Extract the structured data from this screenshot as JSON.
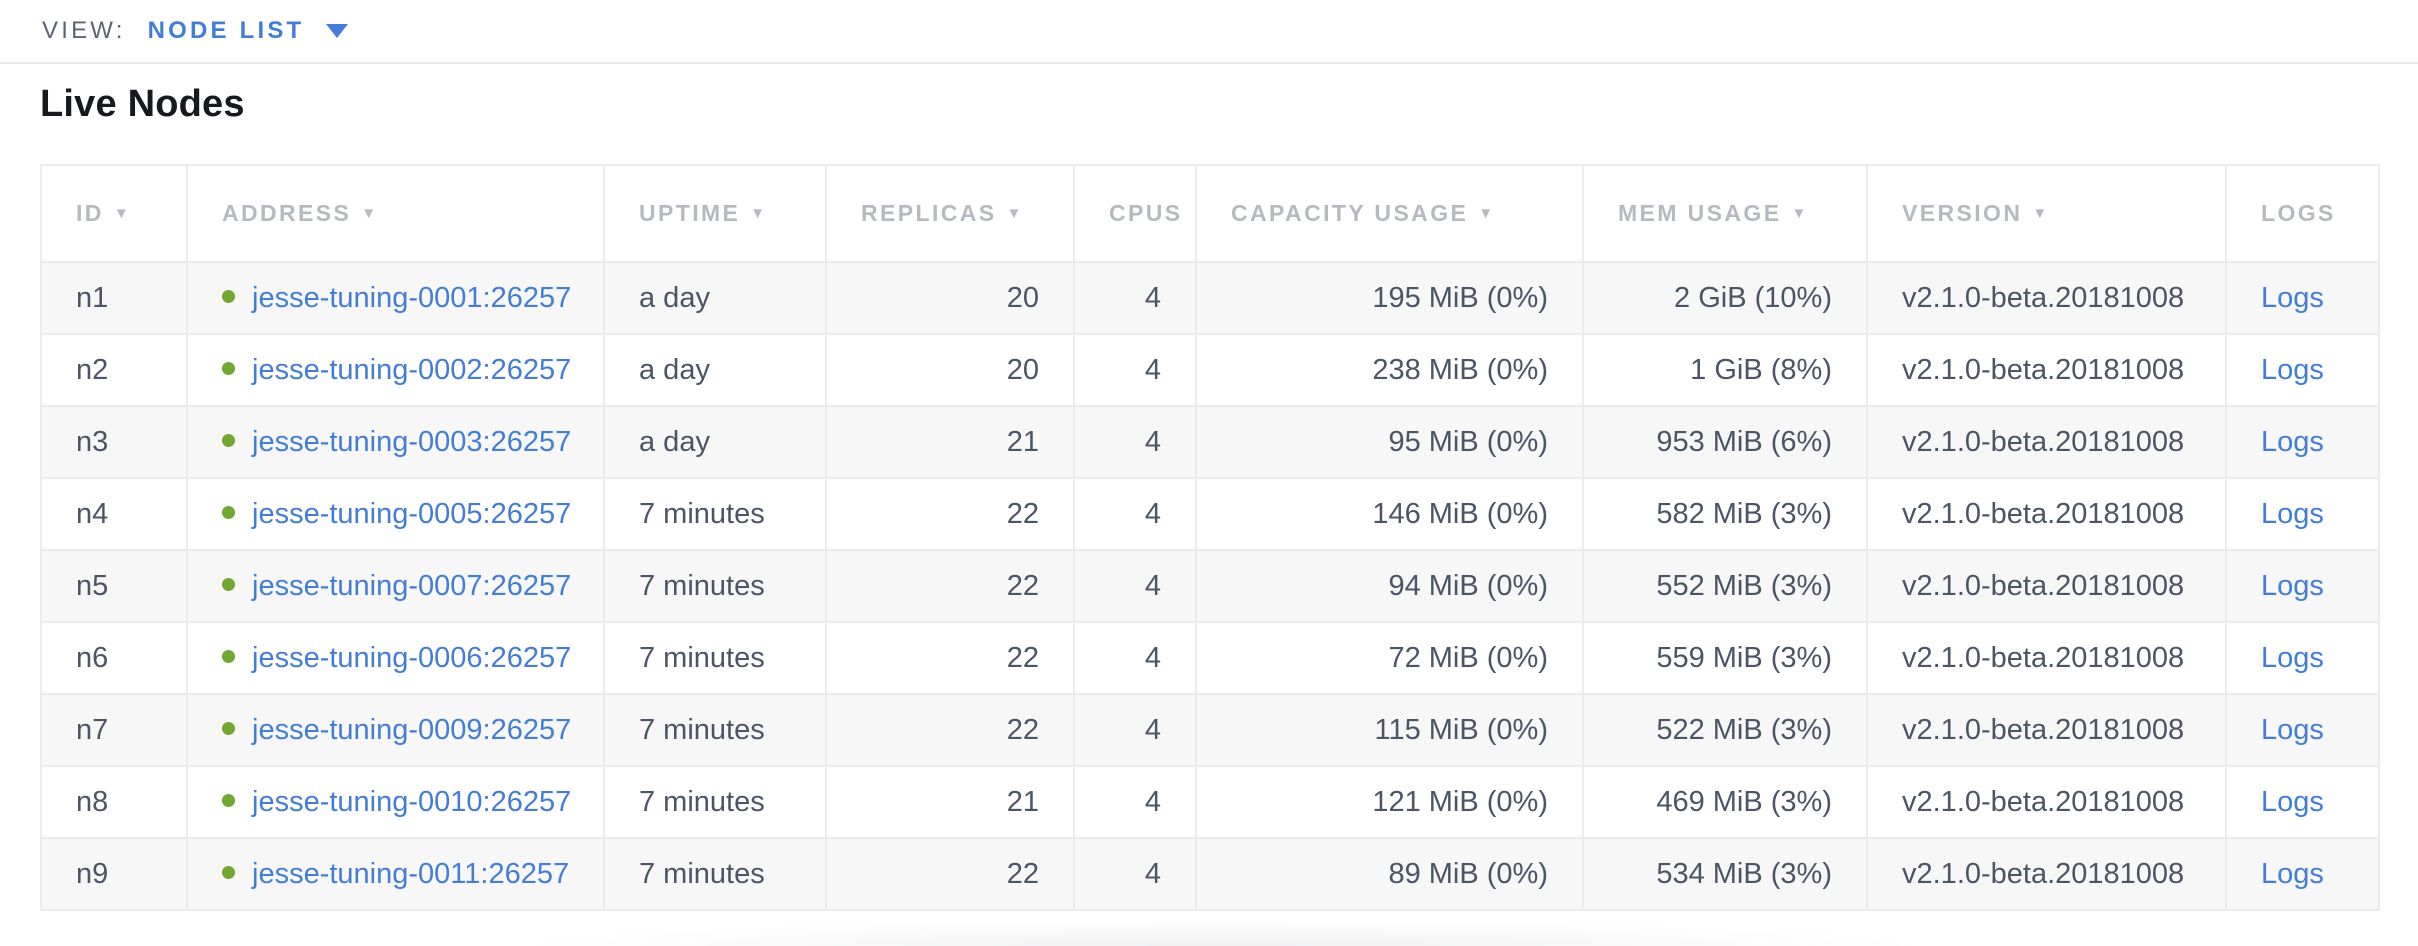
{
  "view_bar": {
    "label": "VIEW:",
    "selected": "NODE LIST",
    "caret_icon": "caret-down-icon"
  },
  "page": {
    "title": "Live Nodes"
  },
  "colors": {
    "link_blue": "#437dd6",
    "status_green": "#71a634",
    "header_gray": "#b6b9bf",
    "text_dark": "#4c5566",
    "row_alt": "#f7f7f8"
  },
  "table": {
    "columns": [
      {
        "key": "id",
        "label": "ID",
        "sortable": true,
        "align": "left"
      },
      {
        "key": "address",
        "label": "ADDRESS",
        "sortable": true,
        "align": "left",
        "type": "address"
      },
      {
        "key": "uptime",
        "label": "UPTIME",
        "sortable": true,
        "align": "left"
      },
      {
        "key": "replicas",
        "label": "REPLICAS",
        "sortable": true,
        "align": "right"
      },
      {
        "key": "cpus",
        "label": "CPUS",
        "sortable": false,
        "align": "right"
      },
      {
        "key": "capacity",
        "label": "CAPACITY USAGE",
        "sortable": true,
        "align": "right"
      },
      {
        "key": "mem",
        "label": "MEM USAGE",
        "sortable": true,
        "align": "right"
      },
      {
        "key": "version",
        "label": "VERSION",
        "sortable": true,
        "align": "left"
      },
      {
        "key": "logs",
        "label": "LOGS",
        "sortable": false,
        "align": "left",
        "type": "link"
      }
    ],
    "sort_arrow_glyph": "▼",
    "status_icon": "node-live-dot-icon",
    "rows": [
      {
        "id": "n1",
        "address": "jesse-tuning-0001:26257",
        "uptime": "a day",
        "replicas": "20",
        "cpus": "4",
        "capacity": "195 MiB (0%)",
        "mem": "2 GiB (10%)",
        "version": "v2.1.0-beta.20181008",
        "logs": "Logs"
      },
      {
        "id": "n2",
        "address": "jesse-tuning-0002:26257",
        "uptime": "a day",
        "replicas": "20",
        "cpus": "4",
        "capacity": "238 MiB (0%)",
        "mem": "1 GiB (8%)",
        "version": "v2.1.0-beta.20181008",
        "logs": "Logs"
      },
      {
        "id": "n3",
        "address": "jesse-tuning-0003:26257",
        "uptime": "a day",
        "replicas": "21",
        "cpus": "4",
        "capacity": "95 MiB (0%)",
        "mem": "953 MiB (6%)",
        "version": "v2.1.0-beta.20181008",
        "logs": "Logs"
      },
      {
        "id": "n4",
        "address": "jesse-tuning-0005:26257",
        "uptime": "7 minutes",
        "replicas": "22",
        "cpus": "4",
        "capacity": "146 MiB (0%)",
        "mem": "582 MiB (3%)",
        "version": "v2.1.0-beta.20181008",
        "logs": "Logs"
      },
      {
        "id": "n5",
        "address": "jesse-tuning-0007:26257",
        "uptime": "7 minutes",
        "replicas": "22",
        "cpus": "4",
        "capacity": "94 MiB (0%)",
        "mem": "552 MiB (3%)",
        "version": "v2.1.0-beta.20181008",
        "logs": "Logs"
      },
      {
        "id": "n6",
        "address": "jesse-tuning-0006:26257",
        "uptime": "7 minutes",
        "replicas": "22",
        "cpus": "4",
        "capacity": "72 MiB (0%)",
        "mem": "559 MiB (3%)",
        "version": "v2.1.0-beta.20181008",
        "logs": "Logs"
      },
      {
        "id": "n7",
        "address": "jesse-tuning-0009:26257",
        "uptime": "7 minutes",
        "replicas": "22",
        "cpus": "4",
        "capacity": "115 MiB (0%)",
        "mem": "522 MiB (3%)",
        "version": "v2.1.0-beta.20181008",
        "logs": "Logs"
      },
      {
        "id": "n8",
        "address": "jesse-tuning-0010:26257",
        "uptime": "7 minutes",
        "replicas": "21",
        "cpus": "4",
        "capacity": "121 MiB (0%)",
        "mem": "469 MiB (3%)",
        "version": "v2.1.0-beta.20181008",
        "logs": "Logs"
      },
      {
        "id": "n9",
        "address": "jesse-tuning-0011:26257",
        "uptime": "7 minutes",
        "replicas": "22",
        "cpus": "4",
        "capacity": "89 MiB (0%)",
        "mem": "534 MiB (3%)",
        "version": "v2.1.0-beta.20181008",
        "logs": "Logs"
      }
    ]
  }
}
